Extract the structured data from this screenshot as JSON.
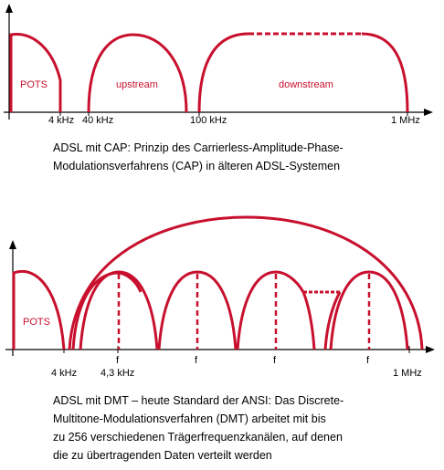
{
  "colors": {
    "curve": "#c8102e",
    "axis": "#000000"
  },
  "diagram1": {
    "labels": {
      "pots": "POTS",
      "upstream": "upstream",
      "downstream": "downstream"
    },
    "ticks": [
      "4 kHz",
      "40 kHz",
      "100 kHz",
      "1 MHz"
    ],
    "caption": [
      "ADSL mit CAP: Prinzip des Carrierless-Amplitude-Phase-",
      "Modulationsverfahrens (CAP) in älteren ADSL-Systemen"
    ]
  },
  "diagram2": {
    "labels": {
      "pots": "POTS"
    },
    "ticks": [
      "4 kHz",
      "4,3 kHz",
      "1 MHz"
    ],
    "carrier_labels": [
      "f",
      "f",
      "f",
      "f"
    ],
    "caption": [
      "ADSL mit DMT – heute Standard der ANSI: Das Discrete-",
      "Multitone-Modulationsverfahren (DMT) arbeitet mit bis",
      "zu 256 verschiedenen Trägerfrequenzkanälen, auf denen",
      "die zu übertragenden Daten verteilt werden"
    ]
  }
}
